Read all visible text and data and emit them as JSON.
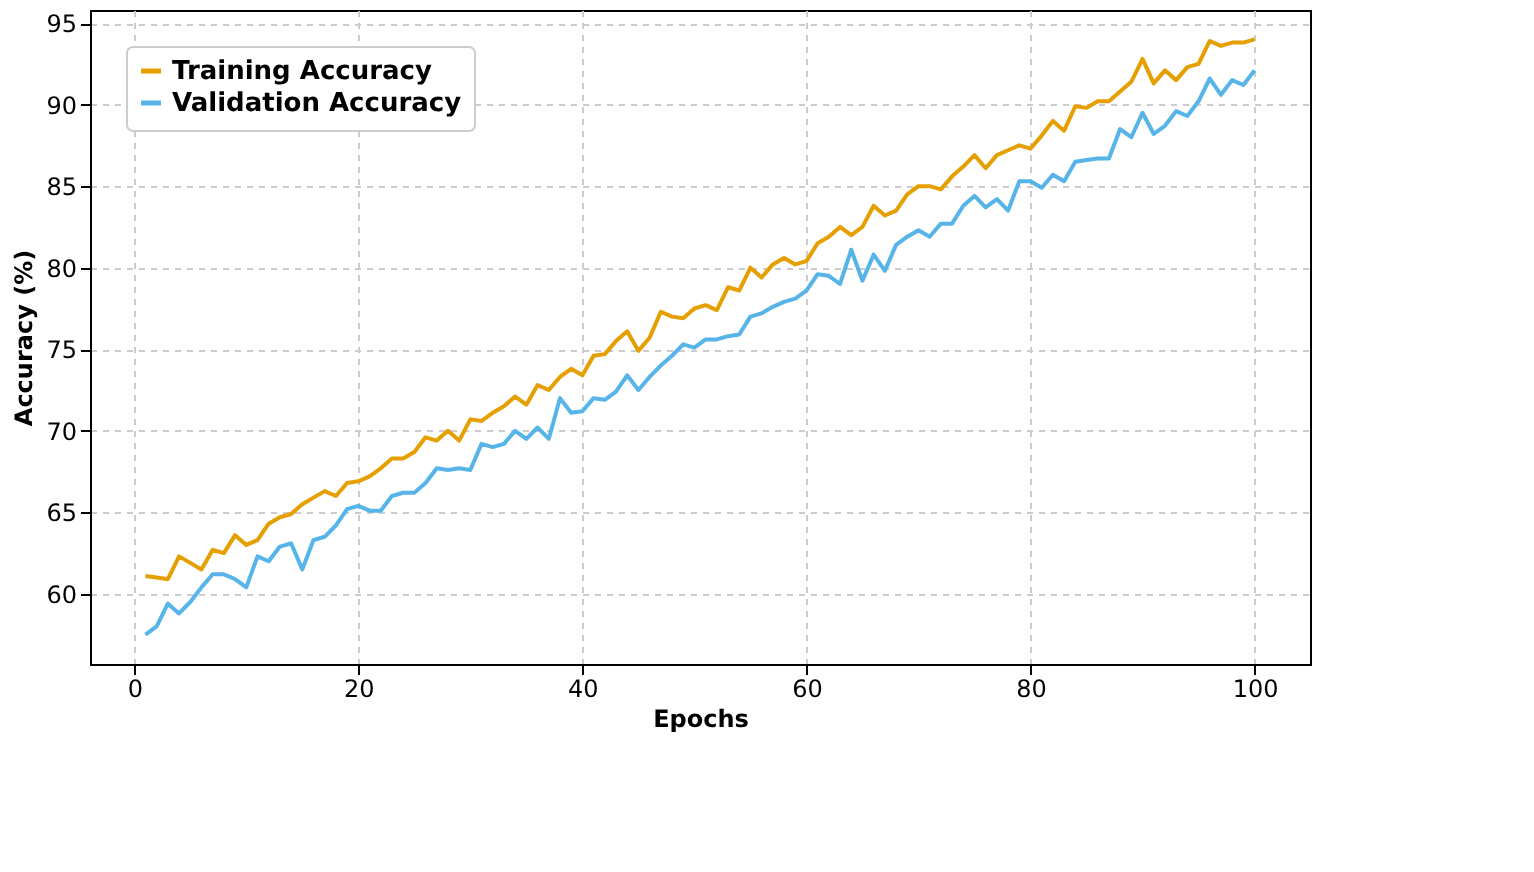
{
  "chart_data": {
    "type": "line",
    "xlabel": "Epochs",
    "ylabel": "Accuracy (%)",
    "x": [
      1,
      2,
      3,
      4,
      5,
      6,
      7,
      8,
      9,
      10,
      11,
      12,
      13,
      14,
      15,
      16,
      17,
      18,
      19,
      20,
      21,
      22,
      23,
      24,
      25,
      26,
      27,
      28,
      29,
      30,
      31,
      32,
      33,
      34,
      35,
      36,
      37,
      38,
      39,
      40,
      41,
      42,
      43,
      44,
      45,
      46,
      47,
      48,
      49,
      50,
      51,
      52,
      53,
      54,
      55,
      56,
      57,
      58,
      59,
      60,
      61,
      62,
      63,
      64,
      65,
      66,
      67,
      68,
      69,
      70,
      71,
      72,
      73,
      74,
      75,
      76,
      77,
      78,
      79,
      80,
      81,
      82,
      83,
      84,
      85,
      86,
      87,
      88,
      89,
      90,
      91,
      92,
      93,
      94,
      95,
      96,
      97,
      98,
      99,
      100
    ],
    "series": [
      {
        "name": "Training Accuracy",
        "color": "#e69f00",
        "values": [
          61.1,
          61.0,
          60.9,
          62.3,
          61.9,
          61.5,
          62.7,
          62.5,
          63.6,
          63.0,
          63.3,
          64.3,
          64.7,
          64.9,
          65.5,
          65.9,
          66.3,
          66.0,
          66.8,
          66.9,
          67.2,
          67.7,
          68.3,
          68.3,
          68.7,
          69.6,
          69.4,
          70.0,
          69.4,
          70.7,
          70.6,
          71.1,
          71.5,
          72.1,
          71.6,
          72.8,
          72.5,
          73.3,
          73.8,
          73.4,
          74.6,
          74.7,
          75.5,
          76.1,
          74.9,
          75.7,
          77.3,
          77.0,
          76.9,
          77.5,
          77.7,
          77.4,
          78.8,
          78.6,
          80.0,
          79.4,
          80.2,
          80.6,
          80.2,
          80.4,
          81.5,
          81.9,
          82.5,
          82.0,
          82.5,
          83.8,
          83.2,
          83.5,
          84.5,
          85.0,
          85.0,
          84.8,
          85.6,
          86.2,
          86.9,
          86.1,
          86.9,
          87.2,
          87.5,
          87.3,
          88.1,
          89.0,
          88.4,
          89.9,
          89.8,
          90.2,
          90.2,
          90.8,
          91.4,
          92.8,
          91.3,
          92.1,
          91.5,
          92.3,
          92.5,
          93.9,
          93.6,
          93.8,
          93.8,
          94.0
        ]
      },
      {
        "name": "Validation Accuracy",
        "color": "#56b4e9",
        "values": [
          57.5,
          58.0,
          59.4,
          58.8,
          59.5,
          60.4,
          61.2,
          61.2,
          60.9,
          60.4,
          62.3,
          62.0,
          62.9,
          63.1,
          61.5,
          63.3,
          63.5,
          64.2,
          65.2,
          65.4,
          65.1,
          65.1,
          66.0,
          66.2,
          66.2,
          66.8,
          67.7,
          67.6,
          67.7,
          67.6,
          69.2,
          69.0,
          69.2,
          70.0,
          69.5,
          70.2,
          69.5,
          72.0,
          71.1,
          71.2,
          72.0,
          71.9,
          72.4,
          73.4,
          72.5,
          73.3,
          74.0,
          74.6,
          75.3,
          75.1,
          75.6,
          75.6,
          75.8,
          75.9,
          77.0,
          77.2,
          77.6,
          77.9,
          78.1,
          78.6,
          79.6,
          79.5,
          79.0,
          81.1,
          79.2,
          80.8,
          79.8,
          81.4,
          81.9,
          82.3,
          81.9,
          82.7,
          82.7,
          83.8,
          84.4,
          83.7,
          84.2,
          83.5,
          85.3,
          85.3,
          84.9,
          85.7,
          85.3,
          86.5,
          86.6,
          86.7,
          86.7,
          88.5,
          88.0,
          89.5,
          88.2,
          88.7,
          89.6,
          89.3,
          90.2,
          91.6,
          90.6,
          91.5,
          91.2,
          92.1
        ]
      }
    ],
    "xlim": [
      -3.95,
      104.95
    ],
    "xticks": [
      0,
      20,
      40,
      60,
      80,
      100
    ],
    "ylim": [
      55.7,
      95.8
    ],
    "yticks": [
      60,
      65,
      70,
      75,
      80,
      85,
      90,
      95
    ],
    "grid": true,
    "legend": "top left",
    "line_style": "solid",
    "marker": "none"
  }
}
